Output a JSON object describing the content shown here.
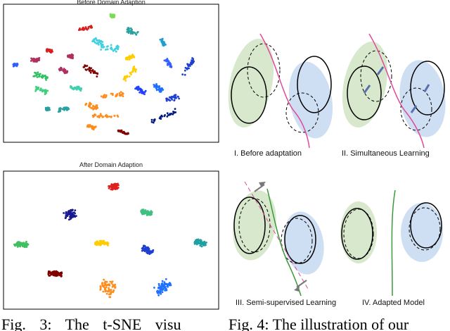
{
  "figure3": {
    "before_title": "Before Domain Adaption",
    "after_title": "After Domain Adaption",
    "caption": "Fig. 3: The t-SNE visu"
  },
  "figure4": {
    "panels": [
      "I. Before adaptation",
      "II. Simultaneous Learning",
      "III. Semi-supervised Learning",
      "IV. Adapted Model"
    ],
    "caption": "Fig. 4: The illustration of our"
  }
}
